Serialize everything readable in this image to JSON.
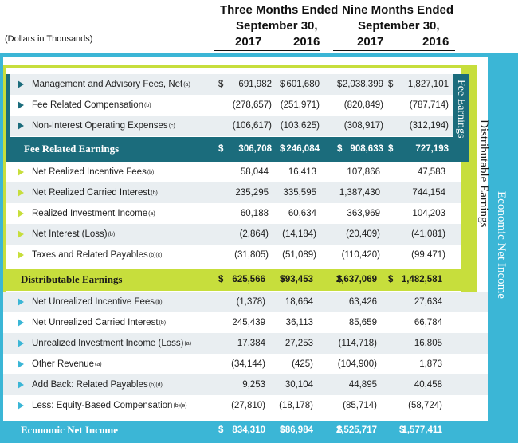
{
  "header": {
    "col1_title_a": "Three Months Ended",
    "col1_title_b": "September 30,",
    "col2_title_a": "Nine Months Ended",
    "col2_title_b": "September 30,",
    "years": [
      "2017",
      "2016",
      "2017",
      "2016"
    ],
    "units_note": "(Dollars in Thousands)"
  },
  "side_labels": {
    "fee": "Fee Earnings",
    "dist": "Distributable Earnings",
    "eni": "Economic Net Income"
  },
  "currency": "$",
  "fee_rows": [
    {
      "label": "Management and Advisory Fees, Net",
      "sup": "(a)",
      "v": [
        "691,982",
        "601,680",
        "2,038,399",
        "1,827,101"
      ],
      "dollar": true
    },
    {
      "label": "Fee Related Compensation",
      "sup": "(b)",
      "v": [
        "(278,657)",
        "(251,971)",
        "(820,849)",
        "(787,714)"
      ],
      "dollar": false
    },
    {
      "label": "Non-Interest Operating Expenses",
      "sup": "(c)",
      "v": [
        "(106,617)",
        "(103,625)",
        "(308,917)",
        "(312,194)"
      ],
      "dollar": false
    }
  ],
  "fee_total": {
    "label": "Fee Related Earnings",
    "v": [
      "306,708",
      "246,084",
      "908,633",
      "727,193"
    ]
  },
  "dist_rows": [
    {
      "label": "Net Realized Incentive Fees",
      "sup": "(b)",
      "v": [
        "58,044",
        "16,413",
        "107,866",
        "47,583"
      ]
    },
    {
      "label": "Net Realized Carried Interest",
      "sup": "(b)",
      "v": [
        "235,295",
        "335,595",
        "1,387,430",
        "744,154"
      ]
    },
    {
      "label": "Realized Investment Income",
      "sup": "(a)",
      "v": [
        "60,188",
        "60,634",
        "363,969",
        "104,203"
      ]
    },
    {
      "label": "Net Interest (Loss)",
      "sup": "(b)",
      "v": [
        "(2,864)",
        "(14,184)",
        "(20,409)",
        "(41,081)"
      ]
    },
    {
      "label": "Taxes and Related Payables",
      "sup": "(b)(c)",
      "v": [
        "(31,805)",
        "(51,089)",
        "(110,420)",
        "(99,471)"
      ]
    }
  ],
  "dist_total": {
    "label": "Distributable Earnings",
    "v": [
      "625,566",
      "593,453",
      "2,637,069",
      "1,482,581"
    ]
  },
  "eni_rows": [
    {
      "label": "Net Unrealized Incentive Fees",
      "sup": "(b)",
      "v": [
        "(1,378)",
        "18,664",
        "63,426",
        "27,634"
      ]
    },
    {
      "label": "Net Unrealized Carried Interest",
      "sup": "(b)",
      "v": [
        "245,439",
        "36,113",
        "85,659",
        "66,784"
      ]
    },
    {
      "label": "Unrealized Investment Income (Loss)",
      "sup": "(a)",
      "v": [
        "17,384",
        "27,253",
        "(114,718)",
        "16,805"
      ]
    },
    {
      "label": "Other Revenue",
      "sup": "(a)",
      "v": [
        "(34,144)",
        "(425)",
        "(104,900)",
        "1,873"
      ]
    },
    {
      "label": "Add Back: Related Payables",
      "sup": "(b)(d)",
      "v": [
        "9,253",
        "30,104",
        "44,895",
        "40,458"
      ]
    },
    {
      "label": "Less: Equity-Based Compensation",
      "sup": "(b)(e)",
      "v": [
        "(27,810)",
        "(18,178)",
        "(85,714)",
        "(58,724)"
      ]
    }
  ],
  "eni_total": {
    "label": "Economic Net Income",
    "v": [
      "834,310",
      "686,984",
      "2,525,717",
      "1,577,411"
    ]
  },
  "colors": {
    "teal": "#1b6c7c",
    "lime": "#c7de3c",
    "blue": "#3bb6d6",
    "shade": "#e9eef1"
  }
}
